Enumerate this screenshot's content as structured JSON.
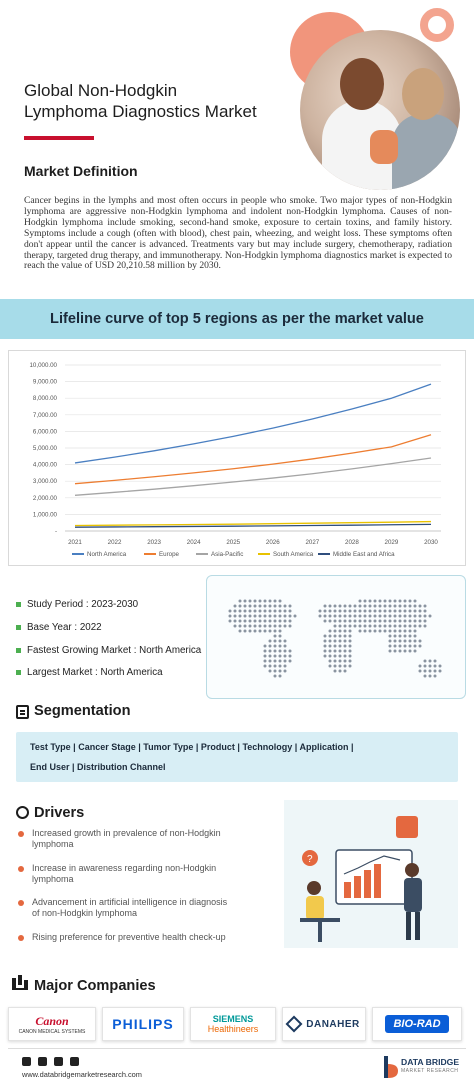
{
  "header": {
    "title_line1": "Global Non-Hodgkin",
    "title_line2": "Lymphoma Diagnostics Market"
  },
  "definition": {
    "heading": "Market Definition",
    "text": "Cancer begins in the lymphs and most often occurs in people who smoke. Two major types of non-Hodgkin lymphoma are aggressive non-Hodgkin lymphoma and indolent non-Hodgkin lymphoma. Causes of non-Hodgkin lymphoma include smoking, second-hand smoke, exposure to certain toxins, and family history. Symptoms include a cough (often with blood), chest pain, wheezing, and weight loss. These symptoms often don't appear until the cancer is advanced. Treatments vary but may include surgery, chemotherapy, radiation therapy, targeted drug therapy, and immunotherapy. Non-Hodgkin lymphoma diagnostics market is expected to reach the value of USD 20,210.58 million by 2030."
  },
  "banner": {
    "text": "Lifeline curve of top 5 regions as per the market value"
  },
  "chart_data": {
    "type": "line",
    "title": "",
    "xlabel": "",
    "ylabel": "",
    "x": [
      2021,
      2022,
      2023,
      2024,
      2025,
      2026,
      2027,
      2028,
      2029,
      2030
    ],
    "x_tick_labels": [
      "2021",
      "2022",
      "2023",
      "2024",
      "2025",
      "2026",
      "2027",
      "2028",
      "2029",
      "2030"
    ],
    "ylim": [
      0,
      10000
    ],
    "y_tick_labels": [
      "-",
      "1,000.00",
      "2,000.00",
      "3,000.00",
      "4,000.00",
      "5,000.00",
      "6,000.00",
      "7,000.00",
      "8,000.00",
      "9,000.00",
      "10,000.00"
    ],
    "grid": true,
    "legend_position": "bottom",
    "series": [
      {
        "name": "North America",
        "color": "#4a7fc1",
        "values": [
          4100,
          4450,
          4830,
          5250,
          5700,
          6200,
          6750,
          7350,
          8000,
          8850
        ]
      },
      {
        "name": "Europe",
        "color": "#ed7d31",
        "values": [
          2850,
          3050,
          3270,
          3500,
          3750,
          4030,
          4340,
          4690,
          5070,
          5800
        ]
      },
      {
        "name": "Asia-Pacific",
        "color": "#a5a5a5",
        "values": [
          2150,
          2330,
          2520,
          2730,
          2950,
          3190,
          3450,
          3740,
          4060,
          4400
        ]
      },
      {
        "name": "South America",
        "color": "#e8c200",
        "values": [
          330,
          350,
          370,
          390,
          410,
          440,
          470,
          500,
          530,
          570
        ]
      },
      {
        "name": "Middle East and Africa",
        "color": "#2f4e7d",
        "values": [
          230,
          245,
          260,
          275,
          290,
          310,
          330,
          350,
          375,
          400
        ]
      }
    ]
  },
  "facts": {
    "study_period": "Study Period : 2023-2030",
    "base_year": "Base Year : 2022",
    "fastest_growing": "Fastest Growing Market : North America",
    "largest": "Largest Market : North America"
  },
  "segmentation": {
    "heading": "Segmentation",
    "row1": "Test Type  |  Cancer Stage  |  Tumor Type  |  Product  |  Technology  |  Application  |",
    "row2": "End User  |  Distribution Channel"
  },
  "drivers": {
    "heading": "Drivers",
    "items": [
      {
        "line1": "Increased growth in prevalence of non-Hodgkin",
        "line2": "lymphoma"
      },
      {
        "line1": "Increase in awareness regarding non-Hodgkin",
        "line2": "lymphoma"
      },
      {
        "line1": "Advancement in artificial intelligence in diagnosis",
        "line2": "of non-Hodgkin lymphoma"
      },
      {
        "line1": "Rising preference for preventive health check-up",
        "line2": ""
      }
    ]
  },
  "companies": {
    "heading": "Major Companies",
    "canon": "Canon",
    "canon_sub": "CANON MEDICAL SYSTEMS",
    "philips": "PHILIPS",
    "siemens": "SIEMENS",
    "siemens_sub": "Healthineers",
    "danaher": "DANAHER",
    "biorad": "BIO-RAD"
  },
  "footer": {
    "url": "www.databridgemarketresearch.com",
    "brand": "DATA BRIDGE",
    "brand_sub": "MARKET RESEARCH"
  }
}
